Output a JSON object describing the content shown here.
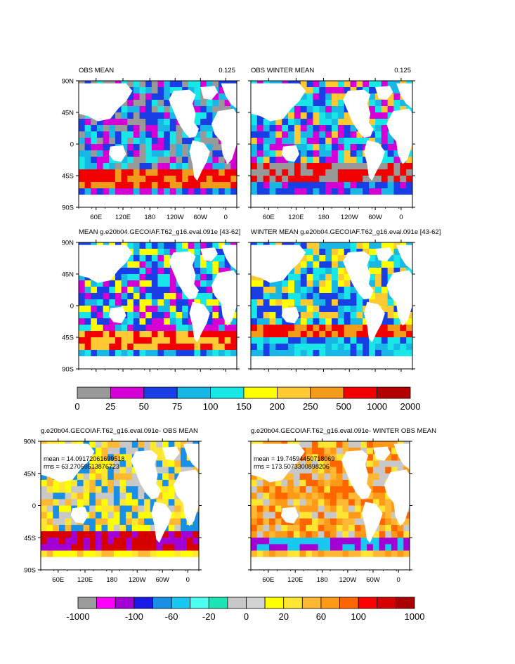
{
  "panels": [
    {
      "id": "obs-mean",
      "title": "OBS MEAN",
      "right_label": "0.125"
    },
    {
      "id": "obs-winter-mean",
      "title": "OBS WINTER MEAN",
      "right_label": "0.125"
    },
    {
      "id": "model-mean",
      "title": "MEAN g.e20b04.GECOIAF.T62_g16.eval.091e [43-62]",
      "right_label": ""
    },
    {
      "id": "model-winter-mean",
      "title": "WINTER MEAN g.e20b04.GECOIAF.T62_g16.eval.091e [43-62]",
      "right_label": ""
    },
    {
      "id": "diff-mean",
      "title": "g.e20b04.GECOIAF.T62_g16.eval.091e- OBS MEAN",
      "right_label": "",
      "stats": [
        "mean = 14.09172061699518",
        "rms = 63.27059513876723"
      ]
    },
    {
      "id": "diff-winter-mean",
      "title": "g.e20b04.GECOIAF.T62_g16.eval.091e- WINTER OBS MEAN",
      "right_label": "",
      "stats": [
        "mean = 19.74594450718069",
        "rms = 173.5073300898206"
      ]
    }
  ],
  "lat_ticks": [
    "90N",
    "45N",
    "0",
    "45S",
    "90S"
  ],
  "lon_ticks": [
    "60E",
    "120E",
    "180",
    "120W",
    "60W",
    "0"
  ],
  "colorbar_top": {
    "labels": [
      "0",
      "25",
      "50",
      "75",
      "100",
      "150",
      "200",
      "250",
      "500",
      "1000",
      "2000"
    ],
    "colors": [
      "#999999",
      "#d400d4",
      "#1a3ee6",
      "#19b7e6",
      "#19e6e6",
      "#ffff00",
      "#ffc933",
      "#f29a19",
      "#f20000",
      "#b30000"
    ]
  },
  "colorbar_bottom": {
    "labels": [
      "-1000",
      "-100",
      "-60",
      "-20",
      "0",
      "20",
      "60",
      "100",
      "1000"
    ],
    "colors": [
      "#9b9b9b",
      "#ff00ff",
      "#a300d6",
      "#1a1ae6",
      "#1a8fe6",
      "#19c8f0",
      "#4dfff0",
      "#19e6b4",
      "#c8c8c8",
      "#d2d2d2",
      "#ffff00",
      "#ffe633",
      "#ffb833",
      "#ff9a19",
      "#ff6600",
      "#ff0000",
      "#d60000",
      "#aa0000"
    ]
  }
}
